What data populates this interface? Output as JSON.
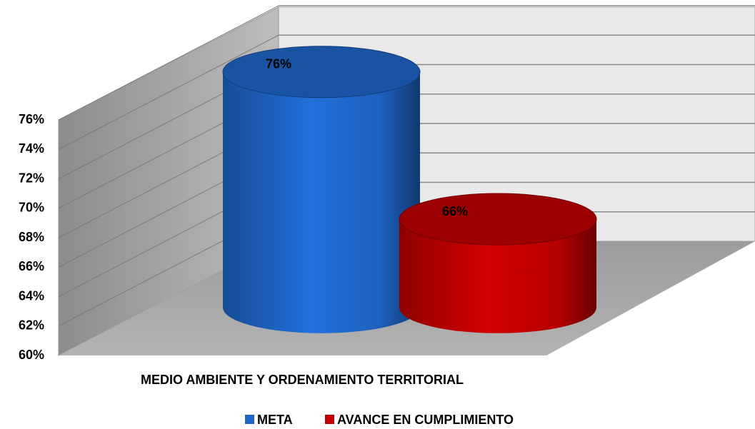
{
  "chart_data": {
    "type": "cylinder",
    "categories": [
      "MEDIO AMBIENTE Y ORDENAMIENTO TERRITORIAL"
    ],
    "series": [
      {
        "name": "META",
        "color": "#1f66c8",
        "values": [
          76
        ],
        "value_labels": [
          "76%"
        ]
      },
      {
        "name": "AVANCE EN CUMPLIMIENTO",
        "color": "#c00000",
        "values": [
          66
        ],
        "value_labels": [
          "66%"
        ]
      }
    ],
    "ylim": [
      60,
      76
    ],
    "yticks": [
      {
        "value": 60,
        "label": "60%"
      },
      {
        "value": 62,
        "label": "62%"
      },
      {
        "value": 64,
        "label": "64%"
      },
      {
        "value": 66,
        "label": "66%"
      },
      {
        "value": 68,
        "label": "68%"
      },
      {
        "value": 70,
        "label": "70%"
      },
      {
        "value": 72,
        "label": "72%"
      },
      {
        "value": 74,
        "label": "74%"
      },
      {
        "value": 76,
        "label": "76%"
      }
    ],
    "grid": true,
    "legend": "bottom"
  }
}
